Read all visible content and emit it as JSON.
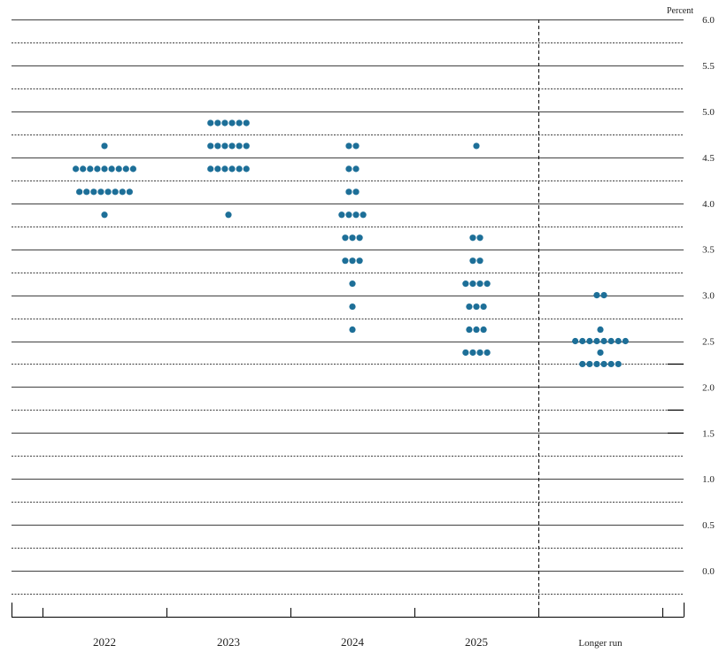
{
  "chart_data": {
    "type": "scatter",
    "subtype": "dot-plot",
    "unit_label": "Percent",
    "categories": [
      "2022",
      "2023",
      "2024",
      "2025",
      "Longer run"
    ],
    "y_ticks": [
      "0.0",
      "0.5",
      "1.0",
      "1.5",
      "2.0",
      "2.5",
      "3.0",
      "3.5",
      "4.0",
      "4.5",
      "5.0",
      "5.5",
      "6.0"
    ],
    "ylim": [
      -0.375,
      6.0
    ],
    "grid": true,
    "dot_color": "#1d6f98",
    "series": [
      {
        "category": "2022",
        "points": [
          {
            "y": 3.875,
            "count": 1
          },
          {
            "y": 4.125,
            "count": 8
          },
          {
            "y": 4.375,
            "count": 9
          },
          {
            "y": 4.625,
            "count": 1
          }
        ]
      },
      {
        "category": "2023",
        "points": [
          {
            "y": 3.875,
            "count": 1
          },
          {
            "y": 4.375,
            "count": 6
          },
          {
            "y": 4.625,
            "count": 6
          },
          {
            "y": 4.875,
            "count": 6
          }
        ]
      },
      {
        "category": "2024",
        "points": [
          {
            "y": 2.625,
            "count": 1
          },
          {
            "y": 2.875,
            "count": 1
          },
          {
            "y": 3.125,
            "count": 1
          },
          {
            "y": 3.375,
            "count": 3
          },
          {
            "y": 3.625,
            "count": 3
          },
          {
            "y": 3.875,
            "count": 4
          },
          {
            "y": 4.125,
            "count": 2
          },
          {
            "y": 4.375,
            "count": 2
          },
          {
            "y": 4.625,
            "count": 2
          }
        ]
      },
      {
        "category": "2025",
        "points": [
          {
            "y": 2.375,
            "count": 4
          },
          {
            "y": 2.625,
            "count": 3
          },
          {
            "y": 2.875,
            "count": 3
          },
          {
            "y": 3.125,
            "count": 4
          },
          {
            "y": 3.375,
            "count": 2
          },
          {
            "y": 3.625,
            "count": 2
          },
          {
            "y": 4.625,
            "count": 1
          }
        ]
      },
      {
        "category": "Longer run",
        "points": [
          {
            "y": 2.25,
            "count": 6
          },
          {
            "y": 2.375,
            "count": 1
          },
          {
            "y": 2.5,
            "count": 8
          },
          {
            "y": 2.625,
            "count": 1
          },
          {
            "y": 3.0,
            "count": 2
          }
        ]
      }
    ]
  }
}
